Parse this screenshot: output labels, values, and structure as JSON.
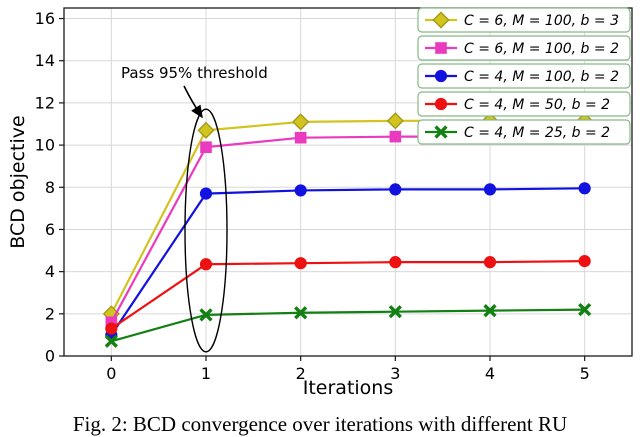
{
  "figure": {
    "caption": "Fig. 2: BCD convergence over iterations with different RU"
  },
  "chart_data": {
    "type": "line",
    "title": "",
    "xlabel": "Iterations",
    "ylabel": "BCD objective",
    "x": [
      0,
      1,
      2,
      3,
      4,
      5
    ],
    "xticks": [
      0,
      1,
      2,
      3,
      4,
      5
    ],
    "yticks": [
      0,
      2,
      4,
      6,
      8,
      10,
      12,
      14,
      16
    ],
    "xlim": [
      -0.5,
      5.5
    ],
    "ylim": [
      0,
      16.5
    ],
    "grid": true,
    "legend_position": "upper right",
    "legend_border_color": "#86b886",
    "series": [
      {
        "name": "C = 6, M = 100, b = 3",
        "marker": "diamond",
        "color": "#d2c41f",
        "edge": "#a39a18",
        "values": [
          2.0,
          10.7,
          11.1,
          11.15,
          11.15,
          11.15
        ]
      },
      {
        "name": "C = 6, M = 100, b = 2",
        "marker": "square",
        "color": "#ea3ac0",
        "edge": "#ea3ac0",
        "values": [
          1.6,
          9.9,
          10.35,
          10.4,
          10.4,
          10.4
        ]
      },
      {
        "name": "C = 4, M = 100, b = 2",
        "marker": "circle",
        "color": "#1212e0",
        "edge": "#1212e0",
        "values": [
          1.0,
          7.7,
          7.85,
          7.9,
          7.9,
          7.95
        ]
      },
      {
        "name": "C = 4, M = 50, b = 2",
        "marker": "circle",
        "color": "#ee1111",
        "edge": "#ee1111",
        "values": [
          1.3,
          4.35,
          4.4,
          4.45,
          4.45,
          4.5
        ]
      },
      {
        "name": "C = 4, M = 25, b = 2",
        "marker": "x",
        "color": "#128012",
        "edge": "#128012",
        "values": [
          0.7,
          1.95,
          2.05,
          2.1,
          2.15,
          2.2
        ]
      }
    ],
    "annotation": {
      "text": "Pass 95% threshold",
      "ellipse_center_x": 1,
      "ellipse_y_range": [
        0.2,
        11.7
      ]
    }
  }
}
